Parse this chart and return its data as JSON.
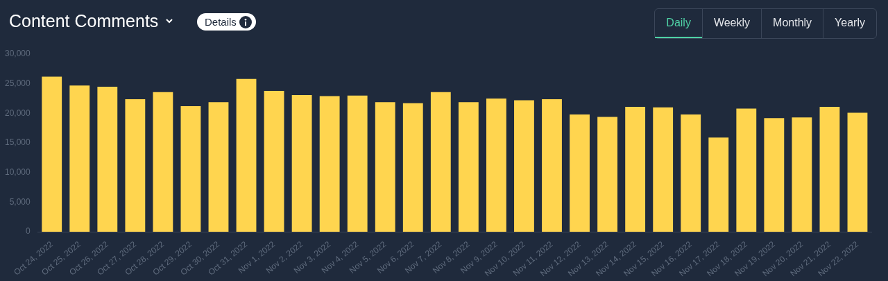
{
  "chart_data": {
    "type": "bar",
    "title": "Content Comments",
    "annotations": [
      "Details",
      "Daily",
      "Weekly",
      "Monthly",
      "Yearly"
    ],
    "categories": [
      "Oct 24, 2022",
      "Oct 25, 2022",
      "Oct 26, 2022",
      "Oct 27, 2022",
      "Oct 28, 2022",
      "Oct 29, 2022",
      "Oct 30, 2022",
      "Oct 31, 2022",
      "Nov 1, 2022",
      "Nov 2, 2022",
      "Nov 3, 2022",
      "Nov 4, 2022",
      "Nov 5, 2022",
      "Nov 6, 2022",
      "Nov 7, 2022",
      "Nov 8, 2022",
      "Nov 9, 2022",
      "Nov 10, 2022",
      "Nov 11, 2022",
      "Nov 12, 2022",
      "Nov 13, 2022",
      "Nov 14, 2022",
      "Nov 15, 2022",
      "Nov 16, 2022",
      "Nov 17, 2022",
      "Nov 18, 2022",
      "Nov 19, 2022",
      "Nov 20, 2022",
      "Nov 21, 2022",
      "Nov 22, 2022"
    ],
    "values": [
      26200,
      24700,
      24500,
      22400,
      23600,
      21200,
      21900,
      25800,
      23800,
      23100,
      22900,
      23000,
      21900,
      21700,
      23600,
      21900,
      22500,
      22200,
      22400,
      19800,
      19400,
      21100,
      21000,
      19800,
      15900,
      20800,
      19200,
      19300,
      21100,
      20100
    ],
    "color": "#ffd54f",
    "ylim": [
      0,
      30000
    ],
    "yticks": [
      0,
      {
        "value": 5000,
        "label": "5,000"
      },
      {
        "value": 10000,
        "label": "10,000"
      },
      {
        "value": 15000,
        "label": "15,000"
      },
      {
        "value": 20000,
        "label": "20,000"
      },
      {
        "value": 25000,
        "label": "25,000"
      },
      {
        "value": 30000,
        "label": "30,000"
      }
    ],
    "legend": false
  }
}
